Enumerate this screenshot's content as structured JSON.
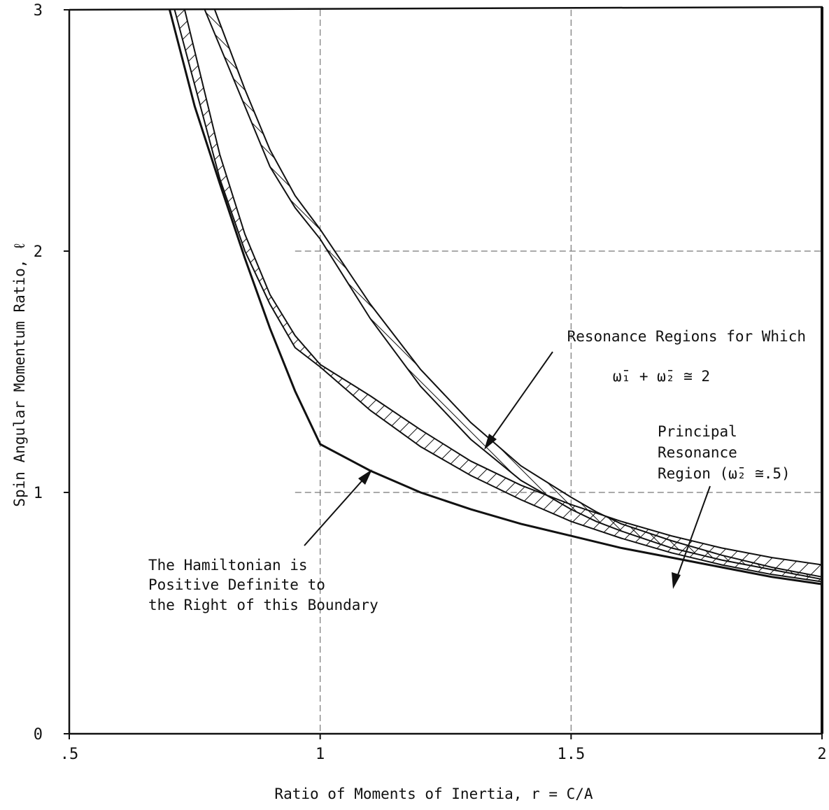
{
  "chart_data": {
    "type": "line",
    "xlabel": "Ratio of Moments of Inertia, r = C/A",
    "ylabel": "Spin Angular Momentum Ratio, ℓ",
    "xlim": [
      0.5,
      2
    ],
    "ylim": [
      0,
      3
    ],
    "x_ticks": [
      {
        "value": 0.5,
        "label": ".5"
      },
      {
        "value": 1,
        "label": "1"
      },
      {
        "value": 1.5,
        "label": "1.5"
      },
      {
        "value": 2,
        "label": "2"
      }
    ],
    "y_ticks": [
      {
        "value": 0,
        "label": "0"
      },
      {
        "value": 1,
        "label": "1"
      },
      {
        "value": 2,
        "label": "2"
      },
      {
        "value": 3,
        "label": "3"
      }
    ],
    "grid": true,
    "series": [
      {
        "key": "hamiltonian_boundary",
        "points": [
          [
            0.7,
            3.0
          ],
          [
            0.75,
            2.6
          ],
          [
            0.8,
            2.28
          ],
          [
            0.85,
            1.97
          ],
          [
            0.9,
            1.68
          ],
          [
            0.95,
            1.42
          ],
          [
            1.0,
            1.2
          ],
          [
            1.1,
            1.09
          ],
          [
            1.2,
            1.0
          ],
          [
            1.3,
            0.93
          ],
          [
            1.4,
            0.87
          ],
          [
            1.5,
            0.82
          ],
          [
            1.6,
            0.77
          ],
          [
            1.7,
            0.73
          ],
          [
            1.8,
            0.69
          ],
          [
            1.9,
            0.65
          ],
          [
            2.0,
            0.62
          ]
        ]
      },
      {
        "key": "principal_lower",
        "points": [
          [
            0.71,
            3.0
          ],
          [
            0.8,
            2.3
          ],
          [
            0.85,
            2.0
          ],
          [
            0.9,
            1.78
          ],
          [
            0.95,
            1.6
          ],
          [
            1.0,
            1.52
          ],
          [
            1.1,
            1.34
          ],
          [
            1.2,
            1.19
          ],
          [
            1.3,
            1.07
          ],
          [
            1.4,
            0.97
          ],
          [
            1.5,
            0.88
          ],
          [
            1.6,
            0.81
          ],
          [
            1.7,
            0.75
          ],
          [
            1.8,
            0.7
          ],
          [
            1.9,
            0.66
          ],
          [
            2.0,
            0.63
          ]
        ]
      },
      {
        "key": "principal_upper",
        "points": [
          [
            0.73,
            3.0
          ],
          [
            0.8,
            2.4
          ],
          [
            0.85,
            2.07
          ],
          [
            0.9,
            1.82
          ],
          [
            0.95,
            1.65
          ],
          [
            1.0,
            1.53
          ],
          [
            1.1,
            1.4
          ],
          [
            1.2,
            1.26
          ],
          [
            1.3,
            1.13
          ],
          [
            1.4,
            1.03
          ],
          [
            1.5,
            0.95
          ],
          [
            1.6,
            0.88
          ],
          [
            1.7,
            0.82
          ],
          [
            1.8,
            0.77
          ],
          [
            1.9,
            0.73
          ],
          [
            2.0,
            0.7
          ]
        ]
      },
      {
        "key": "sum_lower",
        "points": [
          [
            0.77,
            3.0
          ],
          [
            0.85,
            2.6
          ],
          [
            0.9,
            2.35
          ],
          [
            0.95,
            2.18
          ],
          [
            1.0,
            2.05
          ],
          [
            1.1,
            1.72
          ],
          [
            1.2,
            1.44
          ],
          [
            1.3,
            1.22
          ],
          [
            1.4,
            1.05
          ],
          [
            1.5,
            0.93
          ],
          [
            1.55,
            0.88
          ],
          [
            1.6,
            0.84
          ],
          [
            1.7,
            0.77
          ],
          [
            1.8,
            0.72
          ],
          [
            1.9,
            0.68
          ],
          [
            2.0,
            0.64
          ]
        ]
      },
      {
        "key": "sum_upper",
        "points": [
          [
            0.79,
            3.0
          ],
          [
            0.85,
            2.67
          ],
          [
            0.9,
            2.42
          ],
          [
            0.95,
            2.23
          ],
          [
            1.0,
            2.09
          ],
          [
            1.1,
            1.78
          ],
          [
            1.2,
            1.51
          ],
          [
            1.3,
            1.29
          ],
          [
            1.4,
            1.11
          ],
          [
            1.5,
            0.98
          ],
          [
            1.55,
            0.92
          ],
          [
            1.6,
            0.87
          ],
          [
            1.7,
            0.8
          ],
          [
            1.8,
            0.74
          ],
          [
            1.9,
            0.69
          ],
          [
            2.0,
            0.65
          ]
        ]
      }
    ],
    "annotations": {
      "sum_resonance": {
        "lines": [
          "Resonance Regions for Which",
          "ω̄₁ + ω̄₂ ≅ 2"
        ]
      },
      "principal_resonance": {
        "lines": [
          "Principal",
          "Resonance",
          "Region (ω̄₂ ≅.5)"
        ]
      },
      "hamiltonian": {
        "lines": [
          "The Hamiltonian is",
          "Positive Definite to",
          "the Right of this Boundary"
        ]
      }
    }
  }
}
